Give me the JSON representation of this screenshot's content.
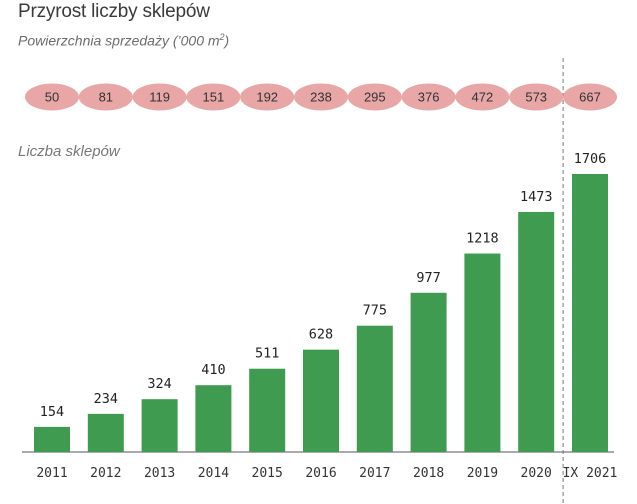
{
  "title": "Przyrost liczby sklepów",
  "subtitle_prefix": "Powierzchnia sprzedaży (’000 m",
  "subtitle_sup": "2",
  "subtitle_suffix": ")",
  "stores_label": "Liczba sklepów",
  "colors": {
    "bar": "#3f9b4f",
    "pill": "#e8a6a6",
    "axis": "#555555",
    "divider": "#777777"
  },
  "chart_data": {
    "type": "bar",
    "title": "Przyrost liczby sklepów",
    "categories": [
      "2011",
      "2012",
      "2013",
      "2014",
      "2015",
      "2016",
      "2017",
      "2018",
      "2019",
      "2020",
      "IX 2021"
    ],
    "series": [
      {
        "name": "Liczba sklepów",
        "values": [
          154,
          234,
          324,
          410,
          511,
          628,
          775,
          977,
          1218,
          1473,
          1706
        ]
      },
      {
        "name": "Powierzchnia sprzedaży (’000 m2)",
        "values": [
          50,
          81,
          119,
          151,
          192,
          238,
          295,
          376,
          472,
          573,
          667
        ]
      }
    ],
    "ylim": [
      0,
      1706
    ],
    "grid": false,
    "divider_before": "IX 2021"
  }
}
